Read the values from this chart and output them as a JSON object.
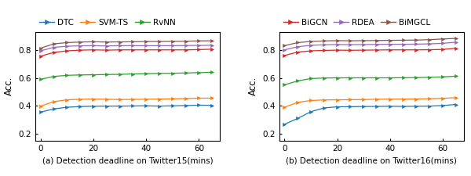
{
  "x": [
    0,
    5,
    10,
    15,
    20,
    25,
    30,
    35,
    40,
    45,
    50,
    55,
    60,
    65
  ],
  "tw15": {
    "DTC": [
      0.355,
      0.378,
      0.39,
      0.395,
      0.397,
      0.398,
      0.398,
      0.399,
      0.4,
      0.398,
      0.4,
      0.402,
      0.405,
      0.403
    ],
    "SVM_TS": [
      0.398,
      0.43,
      0.443,
      0.447,
      0.448,
      0.447,
      0.445,
      0.446,
      0.447,
      0.448,
      0.45,
      0.452,
      0.455,
      0.455
    ],
    "RvNN": [
      0.59,
      0.61,
      0.618,
      0.621,
      0.622,
      0.624,
      0.625,
      0.628,
      0.63,
      0.632,
      0.633,
      0.635,
      0.637,
      0.64
    ],
    "BiGCN": [
      0.755,
      0.782,
      0.793,
      0.798,
      0.8,
      0.798,
      0.8,
      0.8,
      0.8,
      0.8,
      0.8,
      0.8,
      0.802,
      0.805
    ],
    "RDEA": [
      0.793,
      0.818,
      0.826,
      0.829,
      0.83,
      0.828,
      0.83,
      0.83,
      0.83,
      0.83,
      0.83,
      0.831,
      0.832,
      0.833
    ],
    "BiMGCL": [
      0.812,
      0.843,
      0.852,
      0.856,
      0.858,
      0.856,
      0.857,
      0.858,
      0.86,
      0.86,
      0.861,
      0.862,
      0.864,
      0.865
    ]
  },
  "tw16": {
    "DTC": [
      0.268,
      0.31,
      0.358,
      0.385,
      0.393,
      0.394,
      0.395,
      0.396,
      0.397,
      0.396,
      0.397,
      0.398,
      0.402,
      0.41
    ],
    "SVM_TS": [
      0.39,
      0.425,
      0.438,
      0.442,
      0.443,
      0.444,
      0.445,
      0.447,
      0.448,
      0.448,
      0.449,
      0.451,
      0.454,
      0.458
    ],
    "RvNN": [
      0.55,
      0.578,
      0.595,
      0.599,
      0.6,
      0.6,
      0.6,
      0.6,
      0.6,
      0.601,
      0.602,
      0.604,
      0.607,
      0.612
    ],
    "BiGCN": [
      0.76,
      0.784,
      0.793,
      0.796,
      0.798,
      0.797,
      0.798,
      0.799,
      0.8,
      0.8,
      0.8,
      0.801,
      0.803,
      0.812
    ],
    "RDEA": [
      0.8,
      0.822,
      0.833,
      0.836,
      0.838,
      0.837,
      0.838,
      0.839,
      0.84,
      0.84,
      0.841,
      0.843,
      0.847,
      0.855
    ],
    "BiMGCL": [
      0.83,
      0.852,
      0.86,
      0.864,
      0.866,
      0.865,
      0.866,
      0.867,
      0.868,
      0.869,
      0.87,
      0.873,
      0.878,
      0.882
    ]
  },
  "colors": {
    "DTC": "#1f77b4",
    "SVM_TS": "#ff7f0e",
    "RvNN": "#2ca02c",
    "BiGCN": "#d62728",
    "RDEA": "#9467bd",
    "BiMGCL": "#8c564b"
  },
  "legend_labels": {
    "DTC": "DTC",
    "SVM_TS": "SVM-TS",
    "RvNN": "RvNN",
    "BiGCN": "BiGCN",
    "RDEA": "RDEA",
    "BiMGCL": "BiMGCL"
  },
  "ylabel": "Acc.",
  "xlabel_left": "(a) Detection deadline on Twitter15(mins)",
  "xlabel_right": "(b) Detection deadline on Twitter16(mins)",
  "ylim": [
    0.15,
    0.93
  ],
  "yticks": [
    0.2,
    0.4,
    0.6,
    0.8
  ],
  "xticks": [
    0,
    20,
    40,
    60
  ]
}
